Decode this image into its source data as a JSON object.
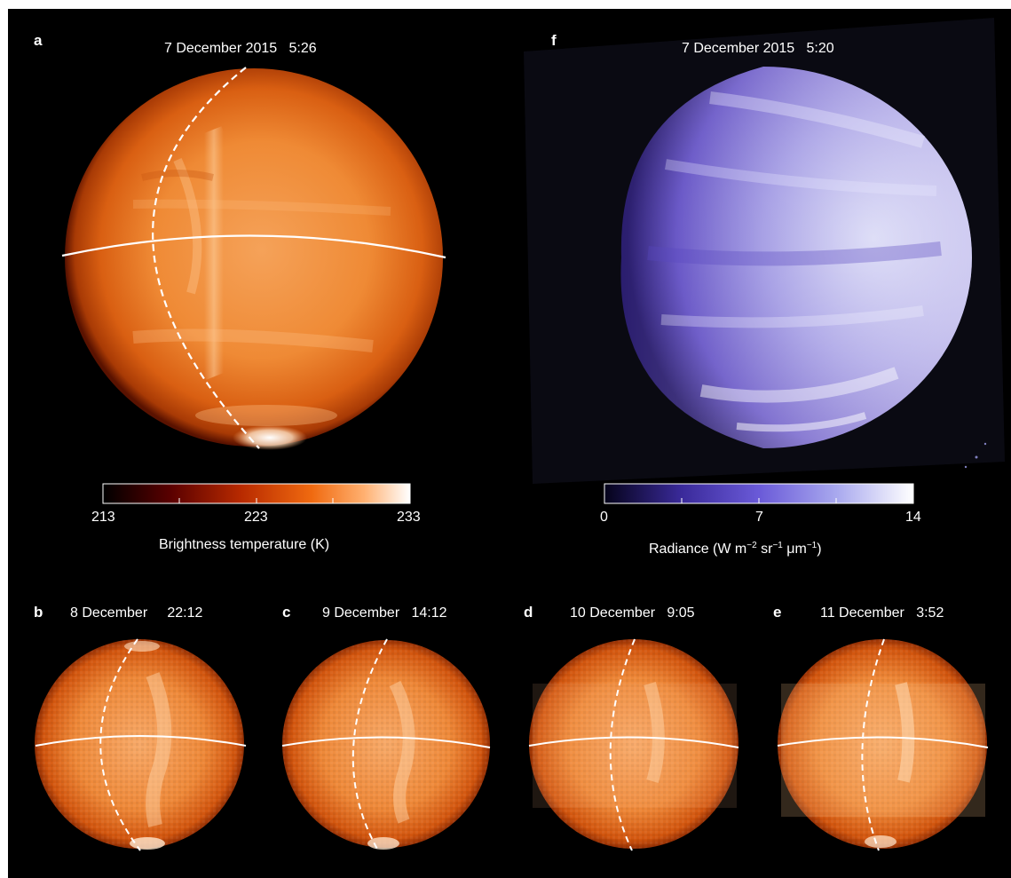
{
  "panels": {
    "a": {
      "letter": "a",
      "header": "7 December 2015   5:26"
    },
    "f": {
      "letter": "f",
      "header": "7 December 2015   5:20"
    },
    "b": {
      "letter": "b",
      "header": "8 December     22:12"
    },
    "c": {
      "letter": "c",
      "header": "9 December   14:12"
    },
    "d": {
      "letter": "d",
      "header": "10 December   9:05"
    },
    "e": {
      "letter": "e",
      "header": "11 December   3:52"
    }
  },
  "colorbar_temp": {
    "ticks": [
      "213",
      "223",
      "233"
    ],
    "title": "Brightness temperature (K)",
    "colors": [
      "#000000",
      "#5a0000",
      "#b82a00",
      "#f06a10",
      "#ffb070",
      "#ffffff"
    ]
  },
  "colorbar_radiance": {
    "ticks": [
      "0",
      "7",
      "14"
    ],
    "title_main": "Radiance (W m",
    "exp1": "−2",
    "sr": " sr",
    "exp2": "−1",
    "um": " μm",
    "exp3": "−1",
    "close": ")",
    "colors": [
      "#05031a",
      "#3a2a9a",
      "#6a5ad8",
      "#a8a8ee",
      "#ffffff"
    ]
  }
}
